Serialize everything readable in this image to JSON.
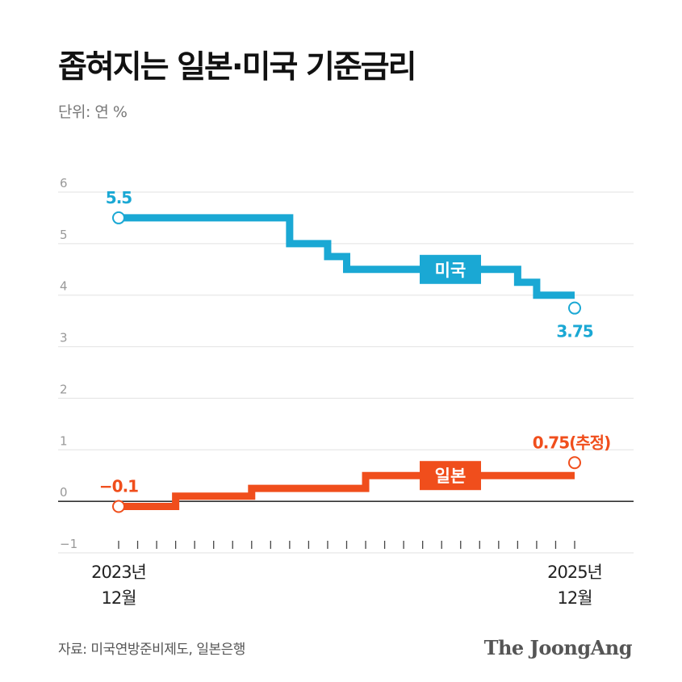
{
  "title": "좁혀지는 일본·미국 기준금리",
  "unit": "단위: 연 %",
  "source": "자료: 미국연방준비제도, 일본은행",
  "brand": "The JoongAng",
  "chart_data": {
    "type": "line",
    "step": true,
    "ylim": [
      -1,
      6
    ],
    "yticks": [
      "6",
      "5",
      "4",
      "3",
      "2",
      "1",
      "0",
      "−1"
    ],
    "ytick_values": [
      6,
      5,
      4,
      3,
      2,
      1,
      0,
      -1
    ],
    "months": 25,
    "x_start_label": [
      "2023년",
      "12월"
    ],
    "x_end_label": [
      "2025년",
      "12월"
    ],
    "series": [
      {
        "name": "미국",
        "color": "#1aa8d4",
        "steps": [
          [
            0,
            5.5
          ],
          [
            9,
            5.0
          ],
          [
            11,
            4.75
          ],
          [
            12,
            4.5
          ],
          [
            21,
            4.25
          ],
          [
            22,
            4.0
          ]
        ],
        "end_month": 24,
        "start_label": "5.5",
        "end_label": "3.75",
        "end_value": 3.75
      },
      {
        "name": "일본",
        "color": "#f04e1c",
        "steps": [
          [
            0,
            -0.1
          ],
          [
            3,
            0.1
          ],
          [
            7,
            0.25
          ],
          [
            13,
            0.5
          ]
        ],
        "end_month": 24,
        "start_label": "−0.1",
        "end_label": "0.75(추정)",
        "end_value": 0.75
      }
    ]
  }
}
